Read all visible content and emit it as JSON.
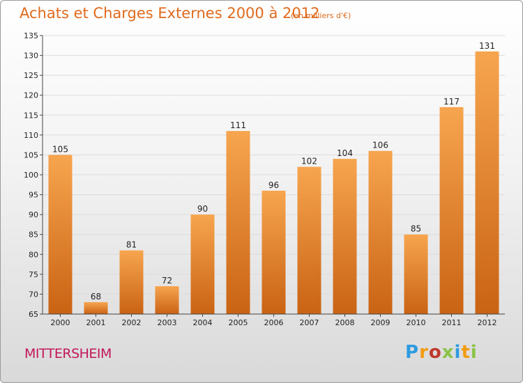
{
  "header": {
    "title": "Achats et Charges Externes 2000 à 2012",
    "unit": "(en milliers d'€)"
  },
  "footer": {
    "location": "MITTERSHEIM",
    "brand_letters": [
      "P",
      "r",
      "o",
      "x",
      "i",
      "t",
      "i"
    ],
    "brand_colors": [
      "#2e9be0",
      "#f39c12",
      "#c0392b",
      "#8bc34a",
      "#2e9be0",
      "#f39c12",
      "#8bc34a"
    ]
  },
  "colors": {
    "bar_top": "#f7a54f",
    "bar_bottom": "#c96314",
    "accent": "#e06a1c",
    "location": "#c2185b"
  },
  "chart_data": {
    "type": "bar",
    "categories": [
      "2000",
      "2001",
      "2002",
      "2003",
      "2004",
      "2005",
      "2006",
      "2007",
      "2008",
      "2009",
      "2010",
      "2011",
      "2012"
    ],
    "values": [
      105,
      68,
      81,
      72,
      90,
      111,
      96,
      102,
      104,
      106,
      85,
      117,
      131
    ],
    "ylim": [
      65,
      135
    ],
    "yticks": [
      65,
      70,
      75,
      80,
      85,
      90,
      95,
      100,
      105,
      110,
      115,
      120,
      125,
      130,
      135
    ],
    "grid": true,
    "title": "Achats et Charges Externes 2000 à 2012",
    "xlabel": "",
    "ylabel": ""
  }
}
